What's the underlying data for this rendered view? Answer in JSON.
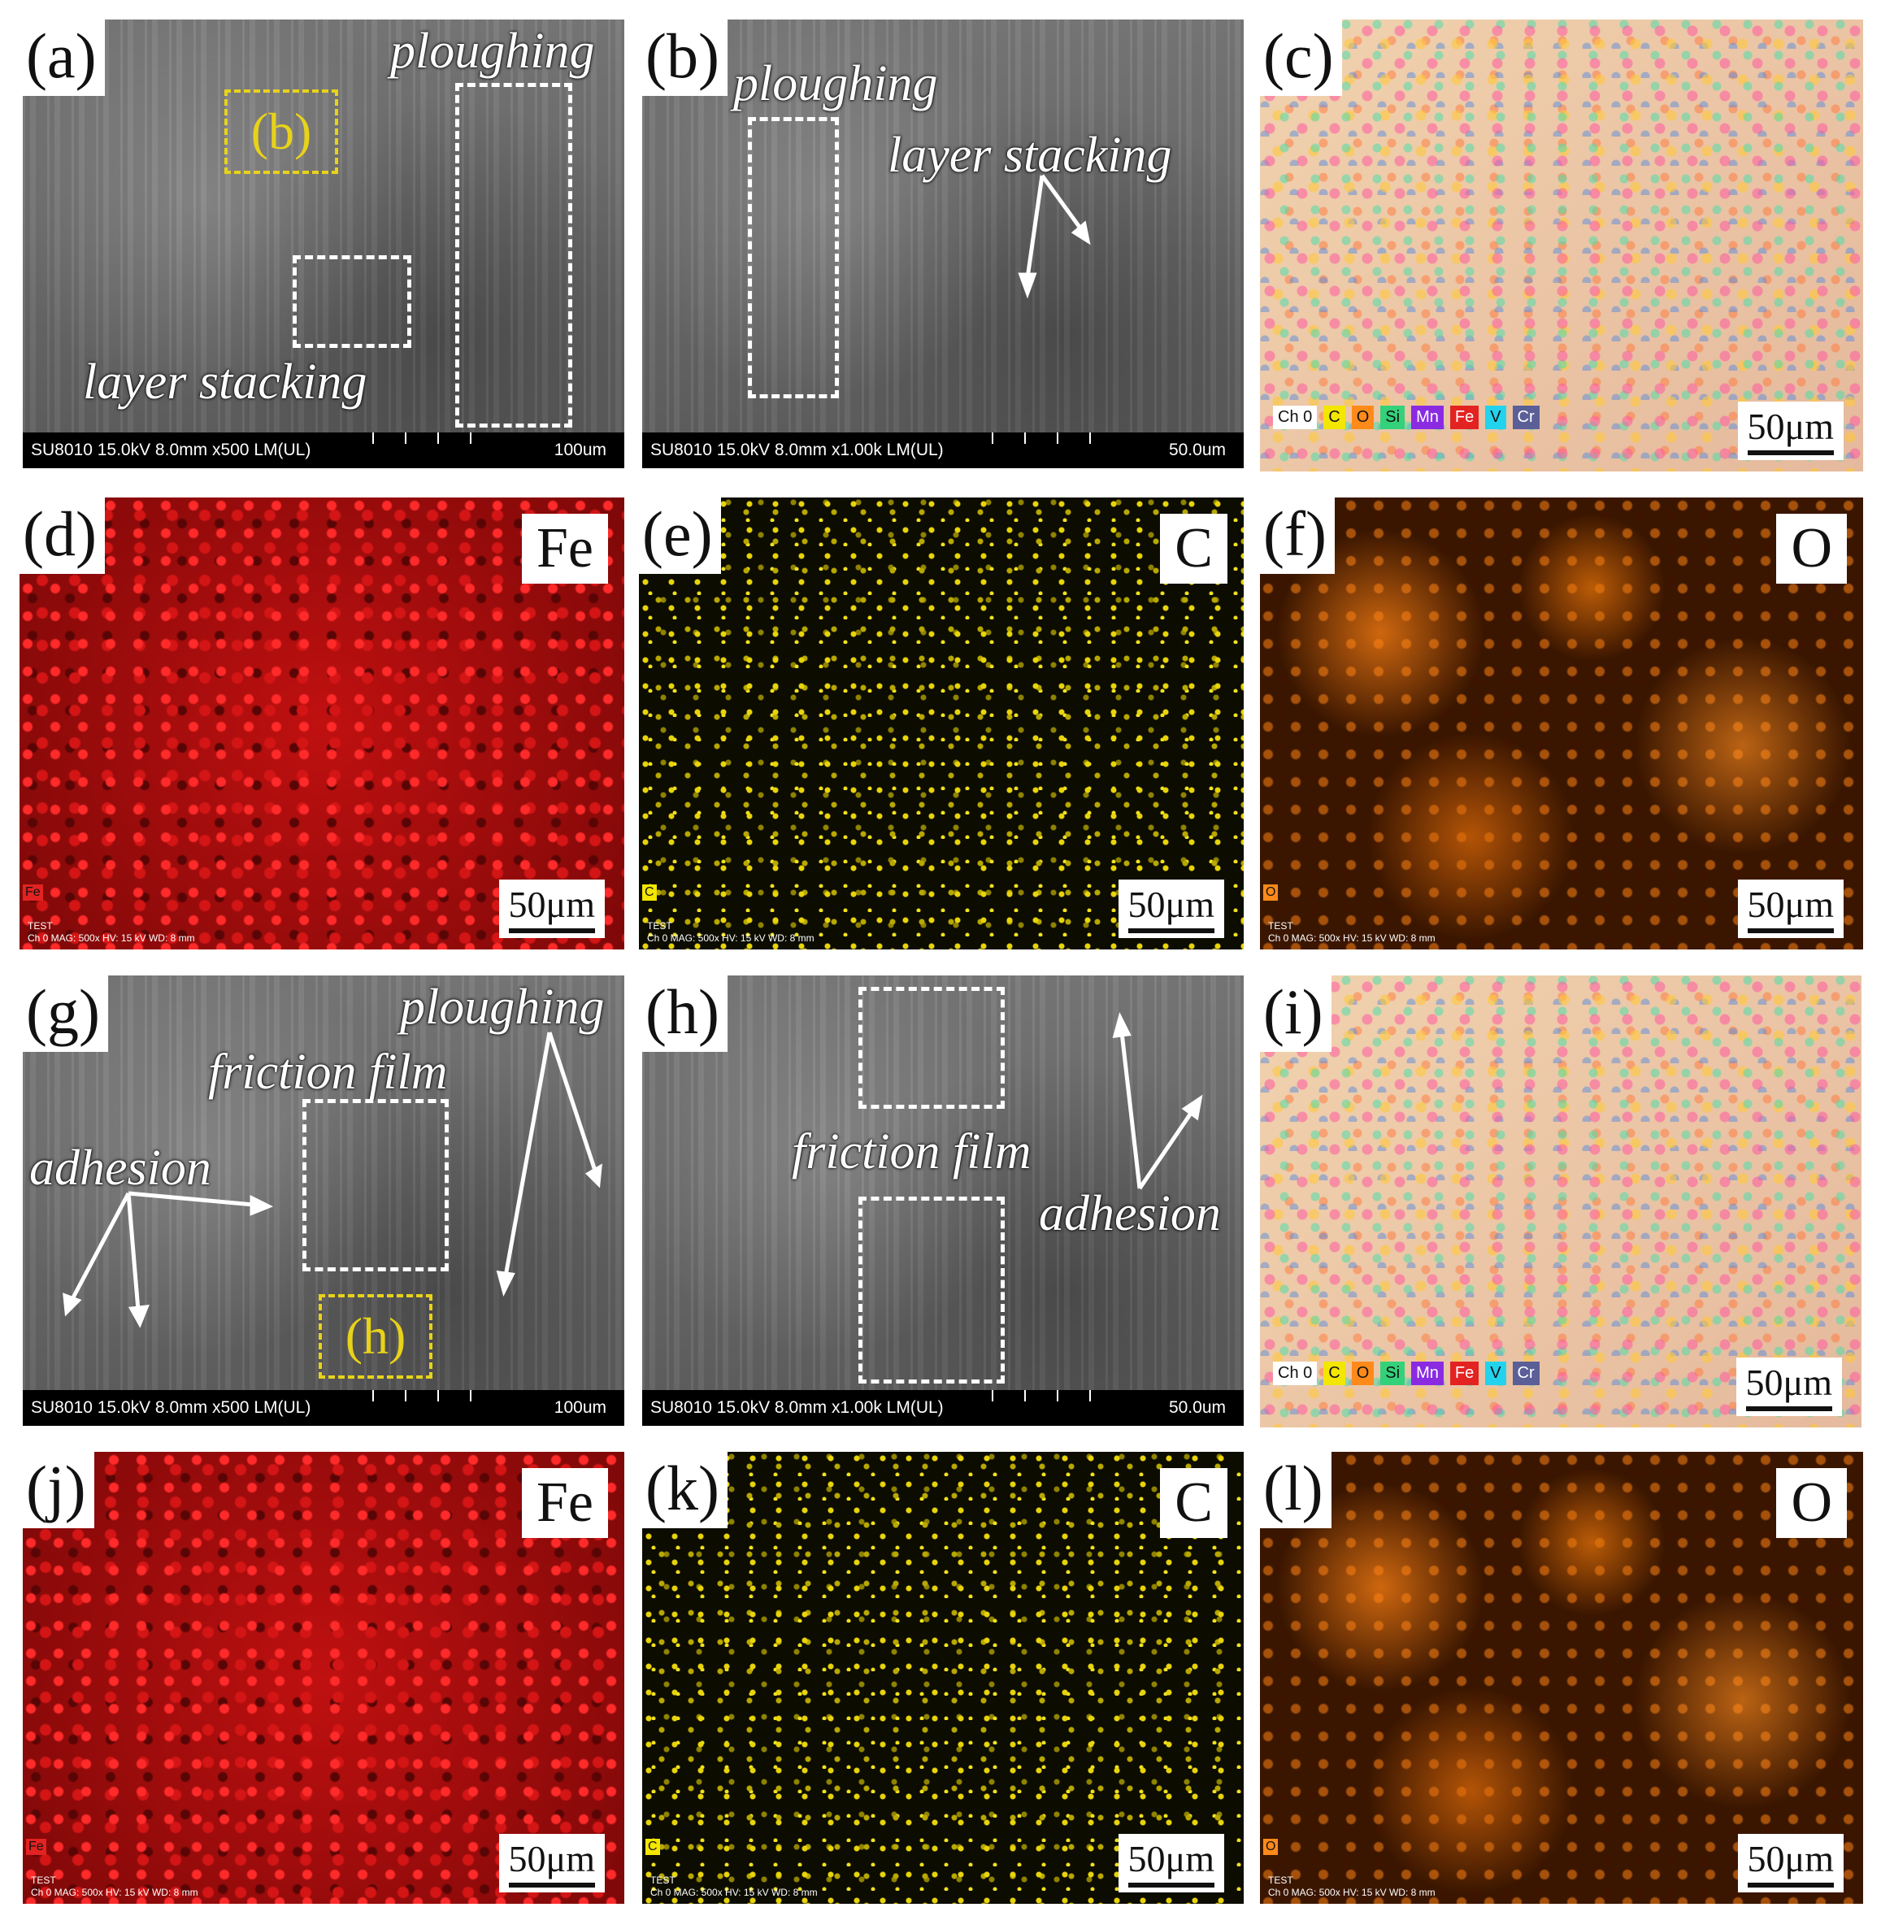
{
  "panels": {
    "a": {
      "letter": "(a)",
      "info_left": "SU8010 15.0kV 8.0mm x500 LM(UL)",
      "info_right": "100um",
      "notes": [
        "ploughing",
        "layer stacking"
      ],
      "inset": "(b)"
    },
    "b": {
      "letter": "(b)",
      "info_left": "SU8010 15.0kV 8.0mm x1.00k LM(UL)",
      "info_right": "50.0um",
      "notes": [
        "ploughing",
        "layer stacking"
      ]
    },
    "c": {
      "letter": "(c)",
      "scale": "50μm",
      "legend": [
        "Ch 0",
        "C",
        "O",
        "Si",
        "Mn",
        "Fe",
        "V",
        "Cr"
      ]
    },
    "d": {
      "letter": "(d)",
      "element": "Fe",
      "scale": "50μm",
      "ch": "Fe",
      "tiny": [
        "TEST",
        "Ch 0    MAG: 500x    HV: 15 kV    WD: 8 mm"
      ]
    },
    "e": {
      "letter": "(e)",
      "element": "C",
      "scale": "50μm",
      "ch": "C",
      "tiny": [
        "TEST",
        "Ch 0    MAG: 500x    HV: 15 kV    WD: 8 mm"
      ]
    },
    "f": {
      "letter": "(f)",
      "element": "O",
      "scale": "50μm",
      "ch": "O",
      "tiny": [
        "TEST",
        "Ch 0    MAG: 500x    HV: 15 kV    WD: 8 mm"
      ]
    },
    "g": {
      "letter": "(g)",
      "info_left": "SU8010 15.0kV 8.0mm x500 LM(UL)",
      "info_right": "100um",
      "notes": [
        "ploughing",
        "friction film",
        "adhesion"
      ],
      "inset": "(h)"
    },
    "h": {
      "letter": "(h)",
      "info_left": "SU8010 15.0kV 8.0mm x1.00k LM(UL)",
      "info_right": "50.0um",
      "notes": [
        "friction film",
        "adhesion"
      ]
    },
    "i": {
      "letter": "(i)",
      "scale": "50μm",
      "legend": [
        "Ch 0",
        "C",
        "O",
        "Si",
        "Mn",
        "Fe",
        "V",
        "Cr"
      ]
    },
    "j": {
      "letter": "(j)",
      "element": "Fe",
      "scale": "50μm",
      "ch": "Fe",
      "tiny": [
        "TEST",
        "Ch 0    MAG: 500x    HV: 15 kV    WD: 8 mm"
      ]
    },
    "k": {
      "letter": "(k)",
      "element": "C",
      "scale": "50μm",
      "ch": "C",
      "tiny": [
        "TEST",
        "Ch 0    MAG: 500x    HV: 15 kV    WD: 8 mm"
      ]
    },
    "l": {
      "letter": "(l)",
      "element": "O",
      "scale": "50μm",
      "ch": "O",
      "tiny": [
        "TEST",
        "Ch 0    MAG: 500x    HV: 15 kV    WD: 8 mm"
      ]
    }
  },
  "legend_colors": [
    "#ffffff",
    "#f3e600",
    "#ff8a1a",
    "#33d17a",
    "#8a2be2",
    "#e32222",
    "#22d3ee",
    "#5b5f97"
  ]
}
